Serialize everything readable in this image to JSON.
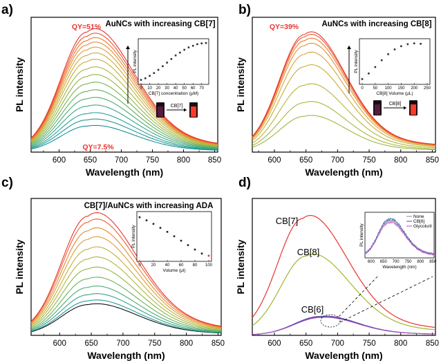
{
  "figure": {
    "panel_labels": [
      "a)",
      "b)",
      "c)",
      "d)"
    ]
  },
  "chart_data": [
    {
      "id": "a",
      "type": "line",
      "title": "AuNCs with increasing CB[7]",
      "xlabel": "Wavelength (nm)",
      "ylabel": "PL intensity",
      "xlim": [
        555,
        855
      ],
      "xticks": [
        600,
        650,
        700,
        750,
        800,
        850
      ],
      "annotations": {
        "top": "QY=51%",
        "bottom": "QY=7.5%",
        "photo_arrow": "CB[7]"
      },
      "series": {
        "peaks": [
          0.97,
          0.935,
          0.9,
          0.865,
          0.825,
          0.78,
          0.73,
          0.67,
          0.61,
          0.55,
          0.49,
          0.43,
          0.37,
          0.31,
          0.26,
          0.21
        ],
        "peak_nm": 645
      },
      "inset": {
        "xlabel": "CB[7] concentration (μM)",
        "ylabel": "PL intensity",
        "xticks": [
          0,
          10,
          20,
          30,
          40,
          50,
          60,
          70
        ],
        "xlim": [
          0,
          75
        ],
        "x": [
          0,
          5,
          10,
          15,
          20,
          25,
          30,
          35,
          40,
          45,
          50,
          55,
          60,
          65,
          70,
          75
        ],
        "y": [
          0.06,
          0.1,
          0.16,
          0.23,
          0.31,
          0.4,
          0.49,
          0.58,
          0.67,
          0.74,
          0.81,
          0.87,
          0.91,
          0.95,
          0.97,
          0.98
        ]
      }
    },
    {
      "id": "b",
      "type": "line",
      "title": "AuNCs with increasing CB[8]",
      "xlabel": "Wavelength (nm)",
      "ylabel": "PL intensity",
      "xlim": [
        565,
        855
      ],
      "xticks": [
        600,
        650,
        700,
        750,
        800,
        850
      ],
      "annotations": {
        "top": "QY=39%",
        "photo_arrow": "CB[8]"
      },
      "series": {
        "peaks": [
          0.95,
          0.93,
          0.9,
          0.86,
          0.79,
          0.69,
          0.54,
          0.4,
          0.29
        ],
        "peak_nm": 648
      },
      "inset": {
        "xlabel": "CB[8] Volume (μL)",
        "ylabel": "PL intensity",
        "xticks": [
          0,
          50,
          100,
          150,
          200,
          250
        ],
        "xlim": [
          0,
          250
        ],
        "x": [
          0,
          25,
          50,
          75,
          100,
          125,
          150,
          175,
          200,
          225
        ],
        "y": [
          0.08,
          0.22,
          0.38,
          0.55,
          0.7,
          0.82,
          0.9,
          0.95,
          0.97,
          0.96
        ]
      }
    },
    {
      "id": "c",
      "type": "line",
      "title": "CB[7]/AuNCs with increasing ADA",
      "xlabel": "Wavelength (nm)",
      "ylabel": "PL intensity",
      "xlim": [
        555,
        855
      ],
      "xticks": [
        600,
        650,
        700,
        750,
        800,
        850
      ],
      "series": {
        "peaks": [
          0.97,
          0.92,
          0.85,
          0.78,
          0.7,
          0.62,
          0.54,
          0.46,
          0.39,
          0.33,
          0.28,
          0.25
        ],
        "peak_nm": 645
      },
      "inset": {
        "xlabel": "Volume (μl)",
        "ylabel": "PL intensity",
        "xticks": [
          0,
          20,
          40,
          60,
          80,
          100
        ],
        "xlim": [
          0,
          100
        ],
        "x": [
          0,
          10,
          20,
          30,
          40,
          50,
          60,
          70,
          80,
          90,
          100
        ],
        "y": [
          0.95,
          0.88,
          0.8,
          0.71,
          0.62,
          0.52,
          0.42,
          0.32,
          0.22,
          0.13,
          0.08
        ]
      }
    },
    {
      "id": "d",
      "type": "line",
      "xlabel": "Wavelength (nm)",
      "ylabel": "PL intensity",
      "xlim": [
        565,
        855
      ],
      "xticks": [
        600,
        650,
        700,
        750,
        800,
        850
      ],
      "series": [
        {
          "name": "CB[7]",
          "color": "#e8322c",
          "peak": 0.93,
          "peak_nm": 645
        },
        {
          "name": "CB[8]",
          "color": "#a6b42e",
          "peak": 0.63,
          "peak_nm": 650
        },
        {
          "name": "CB[6]",
          "color": "#6a3fa0",
          "peak": 0.15,
          "peak_nm": 672
        }
      ],
      "inset": {
        "xlabel": "Wavelength (nm)",
        "ylabel": "PL intensity",
        "xticks": [
          600,
          650,
          700,
          750,
          800,
          850
        ],
        "legend": [
          "None",
          "CB[6]",
          "Glycoluril"
        ],
        "legend_colors": [
          "#8a8a8a",
          "#2e5fb0",
          "#c04ec0"
        ]
      }
    }
  ]
}
